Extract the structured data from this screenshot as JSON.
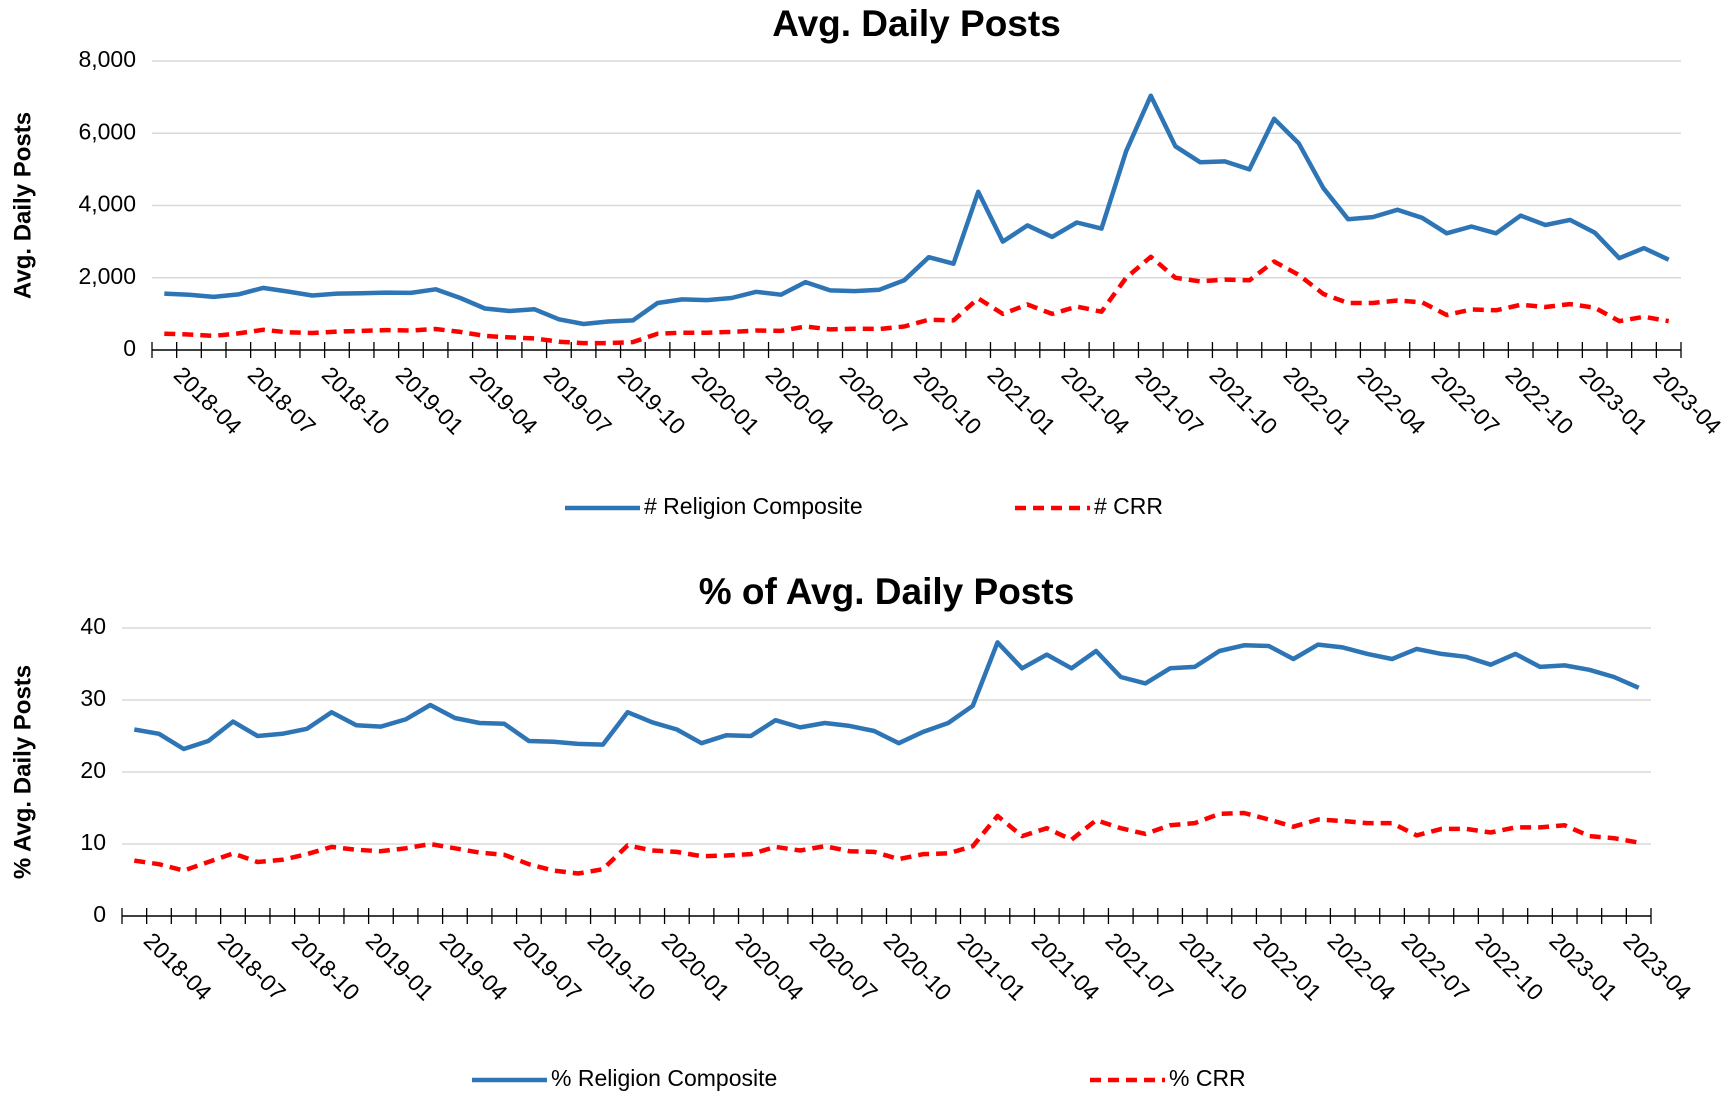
{
  "chart_data": [
    {
      "type": "line",
      "title": "Avg. Daily Posts",
      "y_label": "Avg. Daily Posts",
      "categories": [
        null,
        "2018-04",
        null,
        null,
        "2018-07",
        null,
        null,
        "2018-10",
        null,
        null,
        "2019-01",
        null,
        null,
        "2019-04",
        null,
        null,
        "2019-07",
        null,
        null,
        "2019-10",
        null,
        null,
        "2020-01",
        null,
        null,
        "2020-04",
        null,
        null,
        "2020-07",
        null,
        null,
        "2020-10",
        null,
        null,
        "2021-01",
        null,
        null,
        "2021-04",
        null,
        null,
        "2021-07",
        null,
        null,
        "2021-10",
        null,
        null,
        "2022-01",
        null,
        null,
        "2022-04",
        null,
        null,
        "2022-07",
        null,
        null,
        "2022-10",
        null,
        null,
        "2023-01",
        null,
        null,
        "2023-04"
      ],
      "ylim": [
        0,
        8000
      ],
      "yticks": [
        0,
        {
          "value": 2000,
          "label": "2,000"
        },
        {
          "value": 4000,
          "label": "4,000"
        },
        {
          "value": 6000,
          "label": "6,000"
        },
        {
          "value": 8000,
          "label": "8,000"
        }
      ],
      "grid": true,
      "series": [
        {
          "name": "# Religion Composite",
          "color": "#2e75b6",
          "dash": false,
          "values": [
            1560,
            1530,
            1470,
            1540,
            1720,
            1620,
            1510,
            1560,
            1570,
            1590,
            1580,
            1680,
            1440,
            1150,
            1080,
            1130,
            850,
            720,
            790,
            820,
            1300,
            1400,
            1380,
            1440,
            1610,
            1530,
            1880,
            1650,
            1630,
            1670,
            1930,
            2570,
            2390,
            4380,
            3000,
            3450,
            3130,
            3530,
            3360,
            5500,
            7040,
            5640,
            5200,
            5220,
            5000,
            6400,
            5720,
            4480,
            3620,
            3680,
            3880,
            3660,
            3230,
            3420,
            3230,
            3720,
            3460,
            3600,
            3250,
            2540,
            2820,
            2500
          ]
        },
        {
          "name": "# CRR",
          "color": "#ff0000",
          "dash": true,
          "values": [
            450,
            430,
            390,
            460,
            560,
            490,
            470,
            510,
            530,
            550,
            540,
            580,
            500,
            390,
            350,
            320,
            230,
            190,
            190,
            220,
            450,
            480,
            480,
            500,
            540,
            530,
            650,
            570,
            590,
            580,
            650,
            840,
            820,
            1430,
            1000,
            1260,
            1000,
            1200,
            1060,
            2000,
            2580,
            2000,
            1900,
            1950,
            1930,
            2450,
            2080,
            1550,
            1300,
            1300,
            1370,
            1320,
            970,
            1120,
            1100,
            1250,
            1190,
            1270,
            1170,
            800,
            920,
            800
          ]
        }
      ]
    },
    {
      "type": "line",
      "title": "% of Avg. Daily Posts",
      "y_label": "% Avg. Daily Posts",
      "categories": [
        null,
        "2018-04",
        null,
        null,
        "2018-07",
        null,
        null,
        "2018-10",
        null,
        null,
        "2019-01",
        null,
        null,
        "2019-04",
        null,
        null,
        "2019-07",
        null,
        null,
        "2019-10",
        null,
        null,
        "2020-01",
        null,
        null,
        "2020-04",
        null,
        null,
        "2020-07",
        null,
        null,
        "2020-10",
        null,
        null,
        "2021-01",
        null,
        null,
        "2021-04",
        null,
        null,
        "2021-07",
        null,
        null,
        "2021-10",
        null,
        null,
        "2022-01",
        null,
        null,
        "2022-04",
        null,
        null,
        "2022-07",
        null,
        null,
        "2022-10",
        null,
        null,
        "2023-01",
        null,
        null,
        "2023-04"
      ],
      "ylim": [
        0,
        40
      ],
      "yticks": [
        0,
        10,
        20,
        30,
        40
      ],
      "grid": true,
      "series": [
        {
          "name": "% Religion Composite",
          "color": "#2e75b6",
          "dash": false,
          "values": [
            25.9,
            25.3,
            23.2,
            24.3,
            27.0,
            25.0,
            25.3,
            26.0,
            28.3,
            26.5,
            26.3,
            27.3,
            29.3,
            27.5,
            26.8,
            26.7,
            24.3,
            24.2,
            23.9,
            23.8,
            28.3,
            26.9,
            25.9,
            24.0,
            25.1,
            25.0,
            27.2,
            26.2,
            26.8,
            26.4,
            25.7,
            24.0,
            25.6,
            26.8,
            29.2,
            38.0,
            34.4,
            36.3,
            34.4,
            36.8,
            33.2,
            32.3,
            34.4,
            34.6,
            36.8,
            37.6,
            37.5,
            35.7,
            37.7,
            37.3,
            36.4,
            35.7,
            37.1,
            36.4,
            36.0,
            34.9,
            36.4,
            34.6,
            34.8,
            34.2,
            33.2,
            31.7
          ]
        },
        {
          "name": "% CRR",
          "color": "#ff0000",
          "dash": true,
          "values": [
            7.7,
            7.2,
            6.3,
            7.5,
            8.7,
            7.5,
            7.8,
            8.6,
            9.6,
            9.2,
            9.0,
            9.4,
            10.0,
            9.4,
            8.8,
            8.5,
            7.2,
            6.3,
            5.9,
            6.5,
            9.8,
            9.1,
            8.9,
            8.3,
            8.4,
            8.6,
            9.6,
            9.1,
            9.7,
            9.0,
            8.9,
            7.9,
            8.6,
            8.7,
            9.7,
            13.9,
            11.1,
            12.2,
            10.6,
            13.3,
            12.2,
            11.4,
            12.6,
            12.9,
            14.2,
            14.3,
            13.4,
            12.4,
            13.4,
            13.2,
            12.9,
            12.9,
            11.2,
            12.1,
            12.1,
            11.6,
            12.3,
            12.3,
            12.6,
            11.1,
            10.8,
            10.2
          ]
        }
      ]
    }
  ]
}
